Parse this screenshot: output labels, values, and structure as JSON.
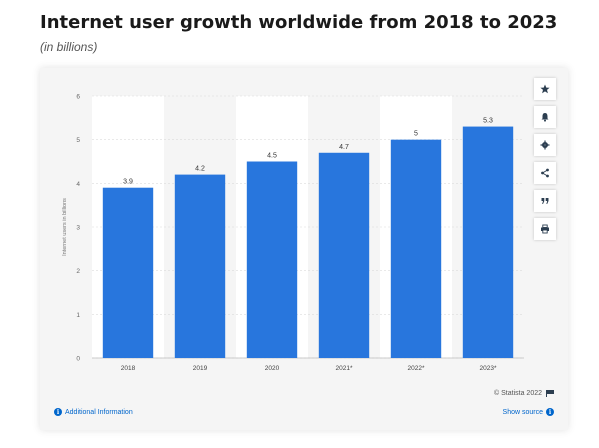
{
  "title": "Internet user growth worldwide from 2018 to 2023",
  "subtitle": "(in billions)",
  "chart_data": {
    "type": "bar",
    "categories": [
      "2018",
      "2019",
      "2020",
      "2021*",
      "2022*",
      "2023*"
    ],
    "values": [
      3.9,
      4.2,
      4.5,
      4.7,
      5,
      5.3
    ],
    "value_labels": [
      "3.9",
      "4.2",
      "4.5",
      "4.7",
      "5",
      "5.3"
    ],
    "title": "Internet user growth worldwide from 2018 to 2023",
    "subtitle": "(in billions)",
    "xlabel": "",
    "ylabel": "Internet users in billions",
    "ylim": [
      0,
      6
    ],
    "yticks": [
      0,
      1,
      2,
      3,
      4,
      5,
      6
    ],
    "grid": true,
    "bar_color": "#2876dd"
  },
  "toolbar": {
    "icons": [
      "star-icon",
      "bell-icon",
      "gear-icon",
      "share-icon",
      "quote-icon",
      "print-icon"
    ]
  },
  "footer": {
    "credit": "© Statista 2022",
    "additional_info": "Additional Information",
    "show_source": "Show source"
  },
  "colors": {
    "bar": "#2876dd",
    "link": "#0066cc",
    "panel_bg": "#f5f5f5",
    "column_bg": "#ffffff"
  }
}
